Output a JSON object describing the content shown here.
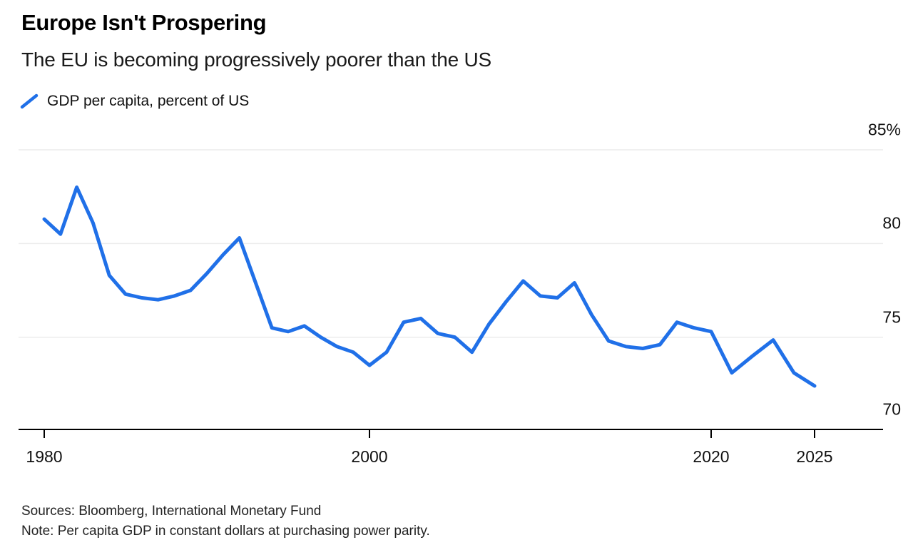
{
  "header": {
    "title": "Europe Isn't Prospering",
    "subtitle": "The EU is becoming progressively poorer than the US"
  },
  "legend": {
    "marker": "blue-diagonal-line",
    "label": "GDP per capita, percent of US"
  },
  "footer": {
    "sources": "Sources: Bloomberg, International Monetary Fund",
    "note": "Note: Per capita GDP in constant dollars at purchasing power parity."
  },
  "colors": {
    "line": "#2070E8",
    "gridline": "#ececec",
    "axis": "#000000",
    "text": "#111111"
  },
  "chart_data": {
    "type": "line",
    "title": "Europe Isn't Prospering",
    "subtitle": "The EU is becoming progressively poorer than the US",
    "series_name": "GDP per capita, percent of US",
    "x": [
      1980,
      1981,
      1982,
      1983,
      1984,
      1985,
      1986,
      1987,
      1988,
      1989,
      1990,
      1991,
      1992,
      1993,
      1994,
      1995,
      1996,
      1997,
      1998,
      1999,
      2000,
      2001,
      2002,
      2003,
      2004,
      2005,
      2006,
      2007,
      2008,
      2009,
      2010,
      2011,
      2012,
      2013,
      2014,
      2015,
      2016,
      2017,
      2018,
      2019,
      2020,
      2021,
      2022,
      2023,
      2024,
      2025
    ],
    "values": [
      81.3,
      80.5,
      83.0,
      81.1,
      78.3,
      77.3,
      77.1,
      77.0,
      77.2,
      77.5,
      78.4,
      79.4,
      80.3,
      77.9,
      75.5,
      75.3,
      75.6,
      75.0,
      74.5,
      74.2,
      73.5,
      74.2,
      75.8,
      76.0,
      75.2,
      75.0,
      74.2,
      75.7,
      76.9,
      78.0,
      77.2,
      77.1,
      77.9,
      76.2,
      74.8,
      74.5,
      74.4,
      74.6,
      75.8,
      75.5,
      75.3,
      73.1,
      74.0,
      74.85,
      73.1,
      72.4
    ],
    "xlabel": "",
    "ylabel": "",
    "ylim": [
      70,
      85
    ],
    "yticks": [
      85,
      80,
      75,
      70
    ],
    "ytick_labels": [
      "85%",
      "80",
      "75",
      "70"
    ],
    "xticks": [
      1980,
      2000,
      2020,
      2025
    ],
    "xtick_labels": [
      "1980",
      "2000",
      "2020",
      "2025"
    ],
    "grid": "horizontal-only",
    "legend_position": "top-left",
    "y_axis_side": "right"
  }
}
